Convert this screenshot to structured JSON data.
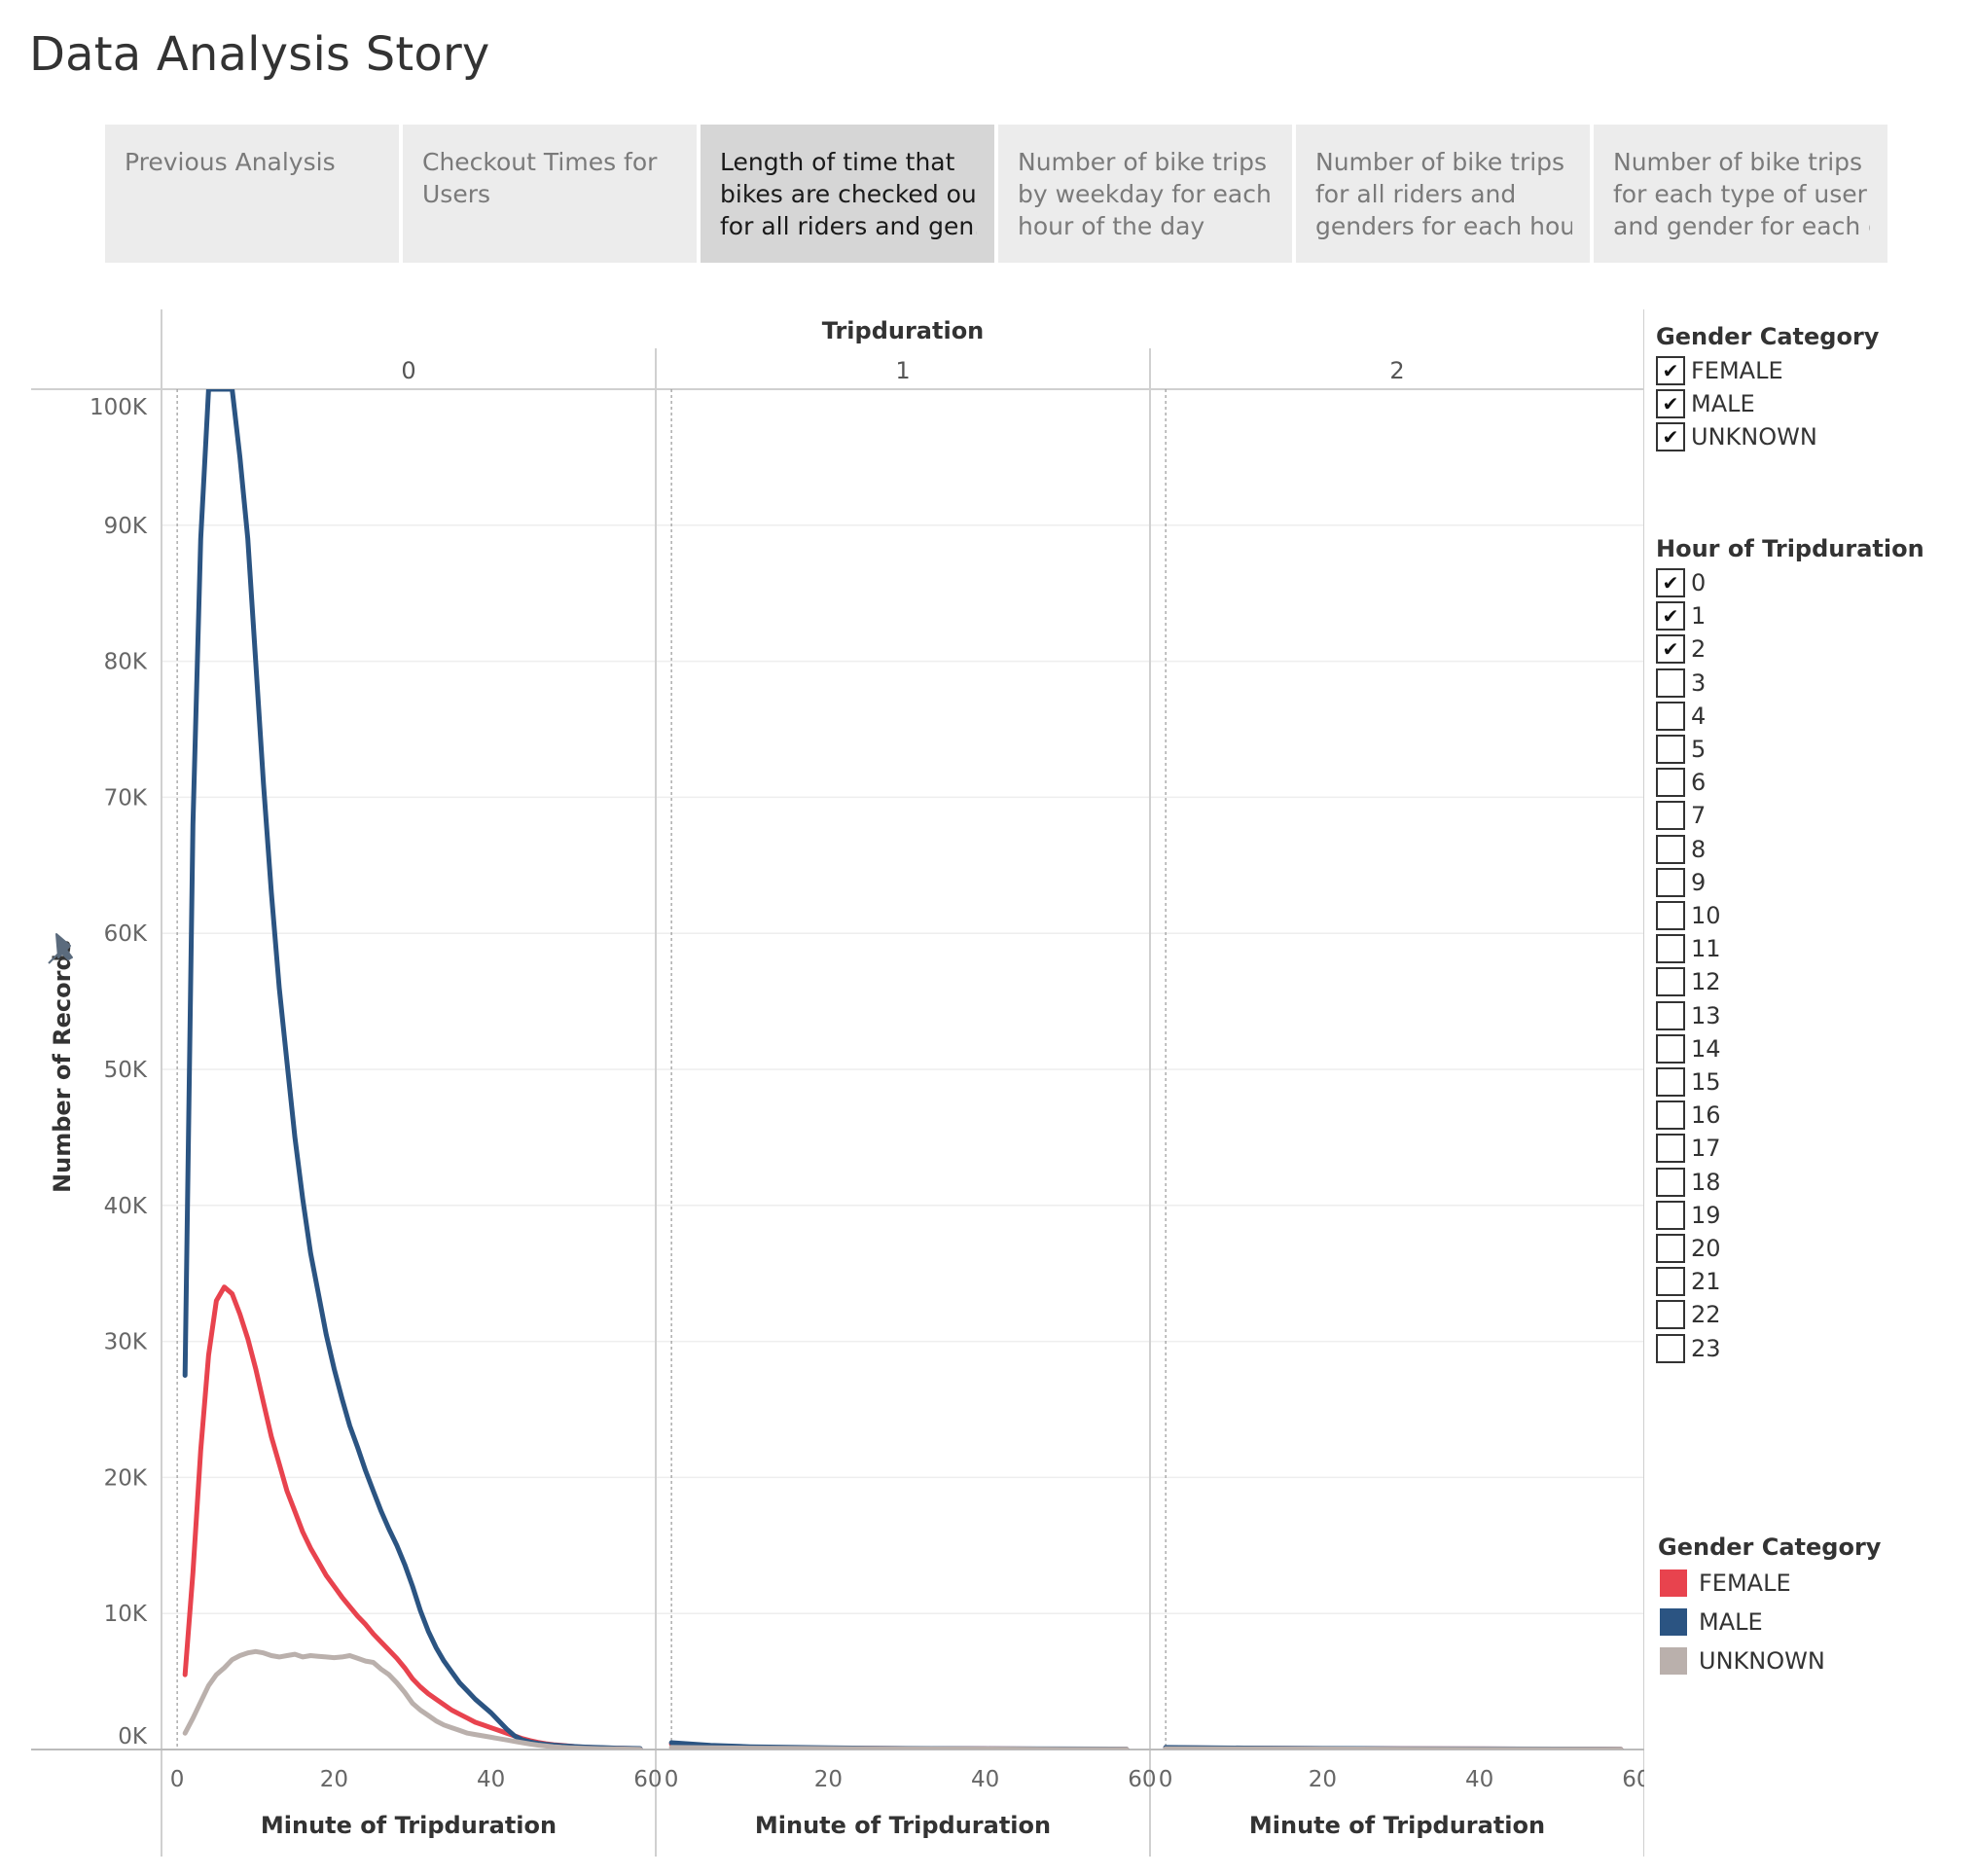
{
  "story": {
    "title": "Data Analysis Story",
    "tabs": [
      {
        "lines": [
          "Previous Analysis"
        ],
        "active": false
      },
      {
        "lines": [
          "Checkout Times for",
          "Users"
        ],
        "active": false
      },
      {
        "lines": [
          "Length of time that",
          "bikes are checked out",
          "for all riders and gen.."
        ],
        "active": true
      },
      {
        "lines": [
          "Number of bike trips",
          "by weekday for each",
          "hour of the day"
        ],
        "active": false
      },
      {
        "lines": [
          "Number of bike trips",
          "for all riders and",
          "genders for each hour.."
        ],
        "active": false
      },
      {
        "lines": [
          "Number of bike trips",
          "for each type of user",
          "and gender for each d.."
        ],
        "active": false
      }
    ]
  },
  "filters": {
    "gender": {
      "title": "Gender Category",
      "items": [
        {
          "label": "FEMALE",
          "checked": true
        },
        {
          "label": "MALE",
          "checked": true
        },
        {
          "label": "UNKNOWN",
          "checked": true
        }
      ]
    },
    "hour": {
      "title": "Hour of Tripduration",
      "items": [
        {
          "label": "0",
          "checked": true
        },
        {
          "label": "1",
          "checked": true
        },
        {
          "label": "2",
          "checked": true
        },
        {
          "label": "3",
          "checked": false
        },
        {
          "label": "4",
          "checked": false
        },
        {
          "label": "5",
          "checked": false
        },
        {
          "label": "6",
          "checked": false
        },
        {
          "label": "7",
          "checked": false
        },
        {
          "label": "8",
          "checked": false
        },
        {
          "label": "9",
          "checked": false
        },
        {
          "label": "10",
          "checked": false
        },
        {
          "label": "11",
          "checked": false
        },
        {
          "label": "12",
          "checked": false
        },
        {
          "label": "13",
          "checked": false
        },
        {
          "label": "14",
          "checked": false
        },
        {
          "label": "15",
          "checked": false
        },
        {
          "label": "16",
          "checked": false
        },
        {
          "label": "17",
          "checked": false
        },
        {
          "label": "18",
          "checked": false
        },
        {
          "label": "19",
          "checked": false
        },
        {
          "label": "20",
          "checked": false
        },
        {
          "label": "21",
          "checked": false
        },
        {
          "label": "22",
          "checked": false
        },
        {
          "label": "23",
          "checked": false
        }
      ]
    }
  },
  "legend": {
    "title": "Gender Category",
    "items": [
      {
        "label": "FEMALE",
        "color": "#e8434e"
      },
      {
        "label": "MALE",
        "color": "#2b5482"
      },
      {
        "label": "UNKNOWN",
        "color": "#bab0ac"
      }
    ]
  },
  "chart_data": {
    "type": "line",
    "column_header": "Tripduration",
    "panels": [
      "0",
      "1",
      "2"
    ],
    "xlabel": "Minute of Tripduration",
    "ylabel": "Number of Records",
    "xlim": [
      -2,
      61
    ],
    "ylim": [
      0,
      100000
    ],
    "x_ticks": [
      "0",
      "20",
      "40",
      "60"
    ],
    "y_ticks": [
      "0K",
      "10K",
      "20K",
      "30K",
      "40K",
      "50K",
      "60K",
      "70K",
      "80K",
      "90K",
      "100K"
    ],
    "grid": true,
    "legend_position": "right",
    "series": [
      {
        "name": "FEMALE",
        "color": "#e8434e",
        "panels": [
          {
            "x": [
              1,
              2,
              3,
              4,
              5,
              6,
              7,
              8,
              9,
              10,
              11,
              12,
              13,
              14,
              15,
              16,
              17,
              18,
              19,
              20,
              21,
              22,
              23,
              24,
              25,
              26,
              27,
              28,
              29,
              30,
              31,
              32,
              33,
              34,
              35,
              36,
              37,
              38,
              39,
              40,
              41,
              42,
              43,
              44,
              45,
              46,
              47,
              48,
              49,
              50,
              51,
              52,
              53,
              54,
              55,
              56,
              57,
              58,
              59
            ],
            "y": [
              5500,
              13000,
              22000,
              29000,
              33000,
              34000,
              33500,
              32000,
              30200,
              28000,
              25500,
              23000,
              21000,
              19000,
              17500,
              16000,
              14800,
              13800,
              12800,
              12000,
              11200,
              10500,
              9800,
              9200,
              8500,
              7900,
              7300,
              6700,
              6000,
              5200,
              4600,
              4100,
              3700,
              3300,
              2900,
              2600,
              2300,
              2000,
              1800,
              1600,
              1400,
              1200,
              1000,
              800,
              650,
              520,
              420,
              350,
              300,
              250,
              200,
              170,
              140,
              120,
              100,
              90,
              80,
              70,
              60
            ]
          },
          {
            "x": [
              0,
              5,
              10,
              20,
              30,
              40,
              50,
              58
            ],
            "y": [
              400,
              250,
              150,
              100,
              70,
              50,
              30,
              20
            ]
          },
          {
            "x": [
              0,
              10,
              20,
              30,
              40,
              50,
              58
            ],
            "y": [
              120,
              90,
              70,
              50,
              40,
              30,
              20
            ]
          }
        ]
      },
      {
        "name": "MALE",
        "color": "#2b5482",
        "panels": [
          {
            "x": [
              1,
              2,
              3,
              4,
              5,
              6,
              7,
              8,
              9,
              10,
              11,
              12,
              13,
              14,
              15,
              16,
              17,
              18,
              19,
              20,
              21,
              22,
              23,
              24,
              25,
              26,
              27,
              28,
              29,
              30,
              31,
              32,
              33,
              34,
              35,
              36,
              37,
              38,
              39,
              40,
              41,
              42,
              43,
              44,
              45,
              46,
              47,
              48,
              49,
              50,
              51,
              52,
              53,
              54,
              55,
              56,
              57,
              58,
              59
            ],
            "y": [
              27500,
              68000,
              89000,
              100000,
              100000,
              100000,
              100000,
              95000,
              89000,
              80000,
              71000,
              63000,
              56000,
              50500,
              45000,
              40500,
              36500,
              33500,
              30500,
              28000,
              25800,
              23800,
              22200,
              20500,
              19000,
              17500,
              16200,
              15000,
              13600,
              12000,
              10200,
              8700,
              7500,
              6500,
              5700,
              4900,
              4300,
              3700,
              3200,
              2700,
              2100,
              1500,
              1000,
              700,
              550,
              450,
              380,
              320,
              280,
              240,
              210,
              180,
              160,
              140,
              120,
              100,
              90,
              80,
              70
            ]
          },
          {
            "x": [
              0,
              5,
              10,
              20,
              30,
              40,
              50,
              58
            ],
            "y": [
              500,
              300,
              200,
              120,
              80,
              60,
              40,
              30
            ]
          },
          {
            "x": [
              0,
              10,
              20,
              30,
              40,
              50,
              58
            ],
            "y": [
              150,
              110,
              80,
              60,
              45,
              35,
              25
            ]
          }
        ]
      },
      {
        "name": "UNKNOWN",
        "color": "#bab0ac",
        "panels": [
          {
            "x": [
              1,
              2,
              3,
              4,
              5,
              6,
              7,
              8,
              9,
              10,
              11,
              12,
              13,
              14,
              15,
              16,
              17,
              18,
              19,
              20,
              21,
              22,
              23,
              24,
              25,
              26,
              27,
              28,
              29,
              30,
              31,
              32,
              33,
              34,
              35,
              36,
              37,
              38,
              39,
              40,
              41,
              42,
              43,
              44,
              45,
              46,
              47,
              48,
              49,
              50,
              51,
              52,
              53,
              54,
              55,
              56,
              57,
              58,
              59
            ],
            "y": [
              1200,
              2300,
              3500,
              4700,
              5500,
              6000,
              6600,
              6900,
              7100,
              7200,
              7100,
              6900,
              6800,
              6900,
              7000,
              6800,
              6900,
              6850,
              6800,
              6750,
              6800,
              6900,
              6700,
              6500,
              6400,
              5900,
              5500,
              4900,
              4200,
              3400,
              2900,
              2500,
              2100,
              1800,
              1600,
              1400,
              1200,
              1100,
              1000,
              900,
              800,
              700,
              600,
              500,
              400,
              320,
              260,
              200,
              160,
              130,
              110,
              90,
              70,
              60,
              50,
              40,
              35,
              30,
              25
            ]
          },
          {
            "x": [
              0,
              10,
              20,
              30,
              40,
              50,
              58
            ],
            "y": [
              150,
              100,
              70,
              50,
              35,
              25,
              20
            ]
          },
          {
            "x": [
              0,
              10,
              20,
              30,
              40,
              50,
              58
            ],
            "y": [
              60,
              50,
              40,
              30,
              25,
              20,
              15
            ]
          }
        ]
      }
    ]
  }
}
